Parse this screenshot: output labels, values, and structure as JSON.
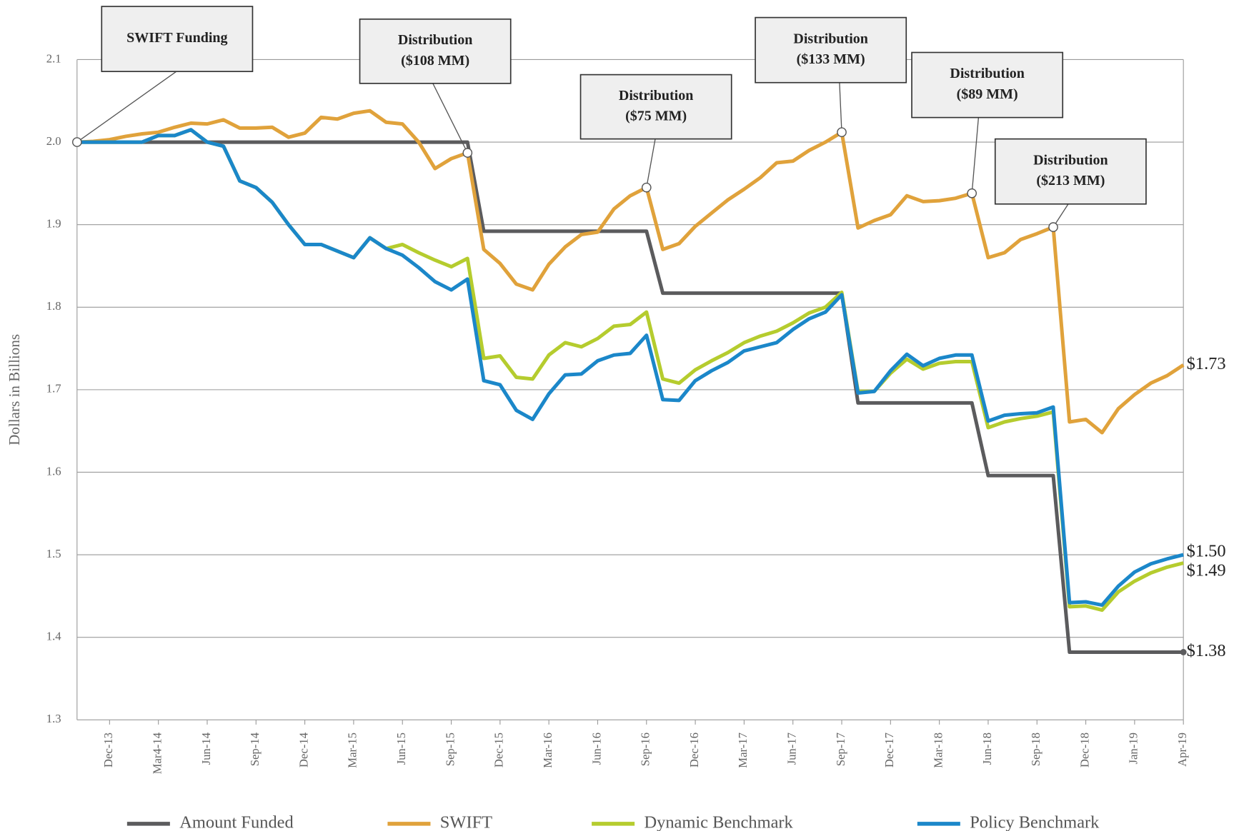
{
  "chart_data": {
    "type": "line",
    "y_label": "Dollars in Billions",
    "categories": [
      null,
      null,
      "Dec-13",
      null,
      null,
      "Mar4-14",
      null,
      null,
      "Jun-14",
      null,
      null,
      "Sep-14",
      null,
      null,
      "Dec-14",
      null,
      null,
      "Mar-15",
      null,
      null,
      "Jun-15",
      null,
      null,
      "Sep-15",
      null,
      null,
      "Dec-15",
      null,
      null,
      "Mar-16",
      null,
      null,
      "Jun-16",
      null,
      null,
      "Sep-16",
      null,
      null,
      "Dec-16",
      null,
      null,
      "Mar-17",
      null,
      null,
      "Jun-17",
      null,
      null,
      "Sep-17",
      null,
      null,
      "Dec-17",
      null,
      null,
      "Mar-18",
      null,
      null,
      "Jun-18",
      null,
      null,
      "Sep-18",
      null,
      null,
      "Dec-18",
      null,
      null,
      "Jan-19",
      null,
      null,
      "Apr-19"
    ],
    "ylim": [
      1.3,
      2.1
    ],
    "yticks": [
      1.3,
      1.4,
      1.5,
      1.6,
      1.7,
      1.8,
      1.9,
      {
        "value": 2,
        "label": "2.0"
      },
      2.1
    ],
    "grid": true,
    "series": [
      {
        "name": "Amount Funded",
        "color": "#5b5b5d",
        "end_label": "$1.38",
        "values": [
          2,
          2,
          2,
          2,
          2,
          2,
          2,
          2,
          2,
          2,
          2,
          2,
          2,
          2,
          2,
          2,
          2,
          2,
          2,
          2,
          2,
          2,
          2,
          2,
          2,
          1.892,
          1.892,
          1.892,
          1.892,
          1.892,
          1.892,
          1.892,
          1.892,
          1.892,
          1.892,
          1.892,
          1.817,
          1.817,
          1.817,
          1.817,
          1.817,
          1.817,
          1.817,
          1.817,
          1.817,
          1.817,
          1.817,
          1.817,
          1.684,
          1.684,
          1.684,
          1.684,
          1.684,
          1.684,
          1.684,
          1.684,
          1.596,
          1.596,
          1.596,
          1.596,
          1.596,
          1.382,
          1.382,
          1.382,
          1.382,
          1.382,
          1.382,
          1.382,
          1.382
        ]
      },
      {
        "name": "SWIFT",
        "color": "#e0a23b",
        "end_label": "$1.73",
        "values": [
          2,
          2.001,
          2.003,
          2.007,
          2.01,
          2.012,
          2.018,
          2.023,
          2.022,
          2.027,
          2.017,
          2.017,
          2.018,
          2.006,
          2.011,
          2.03,
          2.028,
          2.035,
          2.038,
          2.024,
          2.022,
          2,
          1.968,
          1.98,
          1.987,
          1.87,
          1.853,
          1.828,
          1.821,
          1.852,
          1.873,
          1.888,
          1.891,
          1.919,
          1.935,
          1.945,
          1.87,
          1.877,
          1.898,
          1.914,
          1.93,
          1.943,
          1.957,
          1.975,
          1.977,
          1.99,
          2,
          2.012,
          1.896,
          1.905,
          1.912,
          1.935,
          1.928,
          1.929,
          1.932,
          1.938,
          1.86,
          1.866,
          1.882,
          1.889,
          1.897,
          1.661,
          1.664,
          1.648,
          1.677,
          1.694,
          1.708,
          1.717,
          1.73
        ]
      },
      {
        "name": "Dynamic Benchmark",
        "color": "#b5cc2e",
        "end_label": "$1.49",
        "values": [
          2,
          2,
          2,
          2,
          2,
          2.008,
          2.008,
          2.015,
          2,
          1.995,
          1.953,
          1.945,
          1.927,
          1.9,
          1.876,
          1.876,
          1.868,
          1.86,
          1.884,
          1.871,
          1.876,
          1.866,
          1.857,
          1.849,
          1.859,
          1.738,
          1.741,
          1.715,
          1.713,
          1.742,
          1.757,
          1.752,
          1.762,
          1.777,
          1.779,
          1.794,
          1.713,
          1.708,
          1.724,
          1.735,
          1.745,
          1.757,
          1.765,
          1.771,
          1.781,
          1.793,
          1.8,
          1.818,
          1.698,
          1.698,
          1.72,
          1.737,
          1.725,
          1.732,
          1.734,
          1.734,
          1.654,
          1.661,
          1.665,
          1.668,
          1.673,
          1.437,
          1.438,
          1.433,
          1.455,
          1.468,
          1.478,
          1.485,
          1.49
        ]
      },
      {
        "name": "Policy Benchmark",
        "color": "#1b87c9",
        "end_label": "$1.50",
        "values": [
          2,
          2,
          2,
          2,
          2,
          2.008,
          2.008,
          2.015,
          2,
          1.995,
          1.953,
          1.945,
          1.927,
          1.9,
          1.876,
          1.876,
          1.868,
          1.86,
          1.884,
          1.871,
          1.863,
          1.848,
          1.831,
          1.821,
          1.834,
          1.711,
          1.706,
          1.675,
          1.664,
          1.695,
          1.718,
          1.719,
          1.735,
          1.742,
          1.744,
          1.766,
          1.688,
          1.687,
          1.711,
          1.723,
          1.733,
          1.747,
          1.752,
          1.757,
          1.773,
          1.786,
          1.794,
          1.815,
          1.696,
          1.698,
          1.723,
          1.743,
          1.729,
          1.738,
          1.742,
          1.742,
          1.662,
          1.669,
          1.671,
          1.672,
          1.679,
          1.442,
          1.443,
          1.439,
          1.462,
          1.479,
          1.489,
          1.495,
          1.5
        ]
      }
    ],
    "annotations": [
      {
        "lines": [
          "SWIFT Funding"
        ]
      },
      {
        "lines": [
          "Distribution",
          "($108 MM)"
        ]
      },
      {
        "lines": [
          "Distribution",
          "($75 MM)"
        ]
      },
      {
        "lines": [
          "Distribution",
          "($133 MM)"
        ]
      },
      {
        "lines": [
          "Distribution",
          "($89 MM)"
        ]
      },
      {
        "lines": [
          "Distribution",
          "($213 MM)"
        ]
      }
    ]
  }
}
